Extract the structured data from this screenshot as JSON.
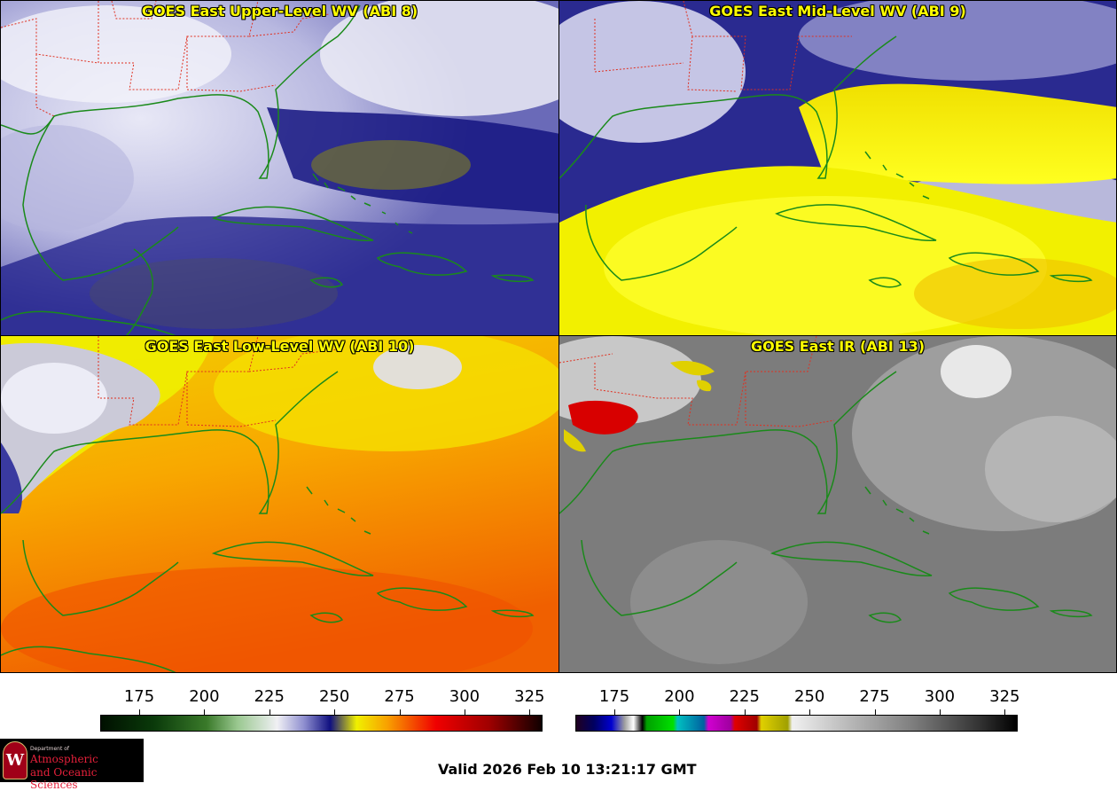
{
  "panels": [
    {
      "id": "p1",
      "title": "GOES East Upper-Level WV (ABI 8)",
      "product": "upper-level-wv"
    },
    {
      "id": "p2",
      "title": "GOES East Mid-Level WV (ABI 9)",
      "product": "mid-level-wv"
    },
    {
      "id": "p3",
      "title": "GOES East Low-Level WV (ABI 10)",
      "product": "low-level-wv"
    },
    {
      "id": "p4",
      "title": "GOES East IR (ABI 13)",
      "product": "ir"
    }
  ],
  "colorbars": {
    "wv": {
      "ticks": [
        "175",
        "200",
        "225",
        "250",
        "275",
        "300",
        "325"
      ],
      "range": [
        160,
        330
      ]
    },
    "ir": {
      "ticks": [
        "175",
        "200",
        "225",
        "250",
        "275",
        "300",
        "325"
      ],
      "range": [
        160,
        330
      ]
    }
  },
  "colors": {
    "coastline": "#1a8a1a",
    "state_borders": "#e03020",
    "title_text": "#ffff00"
  },
  "footer": {
    "valid_time": "Valid 2026 Feb 10 13:21:17 GMT"
  },
  "logo": {
    "seal_letter": "W",
    "department": "Department of",
    "line1": "Atmospheric",
    "line2": "and Oceanic Sciences"
  }
}
